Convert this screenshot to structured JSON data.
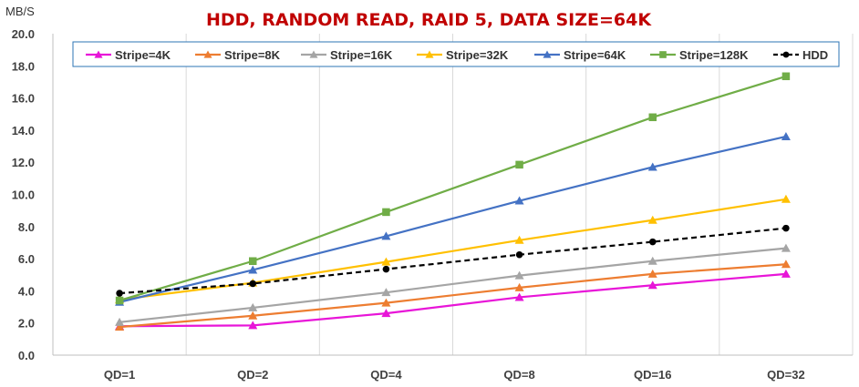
{
  "chart_data": {
    "type": "line",
    "title": "HDD, RANDOM READ, RAID 5, DATA SIZE=64K",
    "ylabel": "MB/S",
    "xlabel": "",
    "categories": [
      "QD=1",
      "QD=2",
      "QD=4",
      "QD=8",
      "QD=16",
      "QD=32"
    ],
    "ylim": [
      0,
      20
    ],
    "yticks": [
      "0.0",
      "2.0",
      "4.0",
      "6.0",
      "8.0",
      "10.0",
      "12.0",
      "14.0",
      "16.0",
      "18.0",
      "20.0"
    ],
    "grid": "vertical",
    "legend_position": "top",
    "series": [
      {
        "name": "Stripe=4K",
        "color": "#e815d8",
        "marker": "triangle",
        "dash": false,
        "values": [
          1.8,
          1.85,
          2.6,
          3.6,
          4.35,
          5.05
        ]
      },
      {
        "name": "Stripe=8K",
        "color": "#ed7d31",
        "marker": "triangle",
        "dash": false,
        "values": [
          1.75,
          2.45,
          3.25,
          4.2,
          5.05,
          5.65
        ]
      },
      {
        "name": "Stripe=16K",
        "color": "#a5a5a5",
        "marker": "triangle",
        "dash": false,
        "values": [
          2.05,
          2.95,
          3.9,
          4.95,
          5.85,
          6.65
        ]
      },
      {
        "name": "Stripe=32K",
        "color": "#ffc000",
        "marker": "triangle",
        "dash": false,
        "values": [
          3.45,
          4.5,
          5.8,
          7.15,
          8.4,
          9.7
        ]
      },
      {
        "name": "Stripe=64K",
        "color": "#4472c4",
        "marker": "triangle",
        "dash": false,
        "values": [
          3.3,
          5.3,
          7.4,
          9.6,
          11.7,
          13.6
        ]
      },
      {
        "name": "Stripe=128K",
        "color": "#70ad47",
        "marker": "square",
        "dash": false,
        "values": [
          3.4,
          5.85,
          8.9,
          11.85,
          14.8,
          17.35
        ]
      },
      {
        "name": "HDD",
        "color": "#000000",
        "marker": "circle",
        "dash": true,
        "values": [
          3.85,
          4.45,
          5.35,
          6.25,
          7.05,
          7.9
        ]
      }
    ]
  }
}
